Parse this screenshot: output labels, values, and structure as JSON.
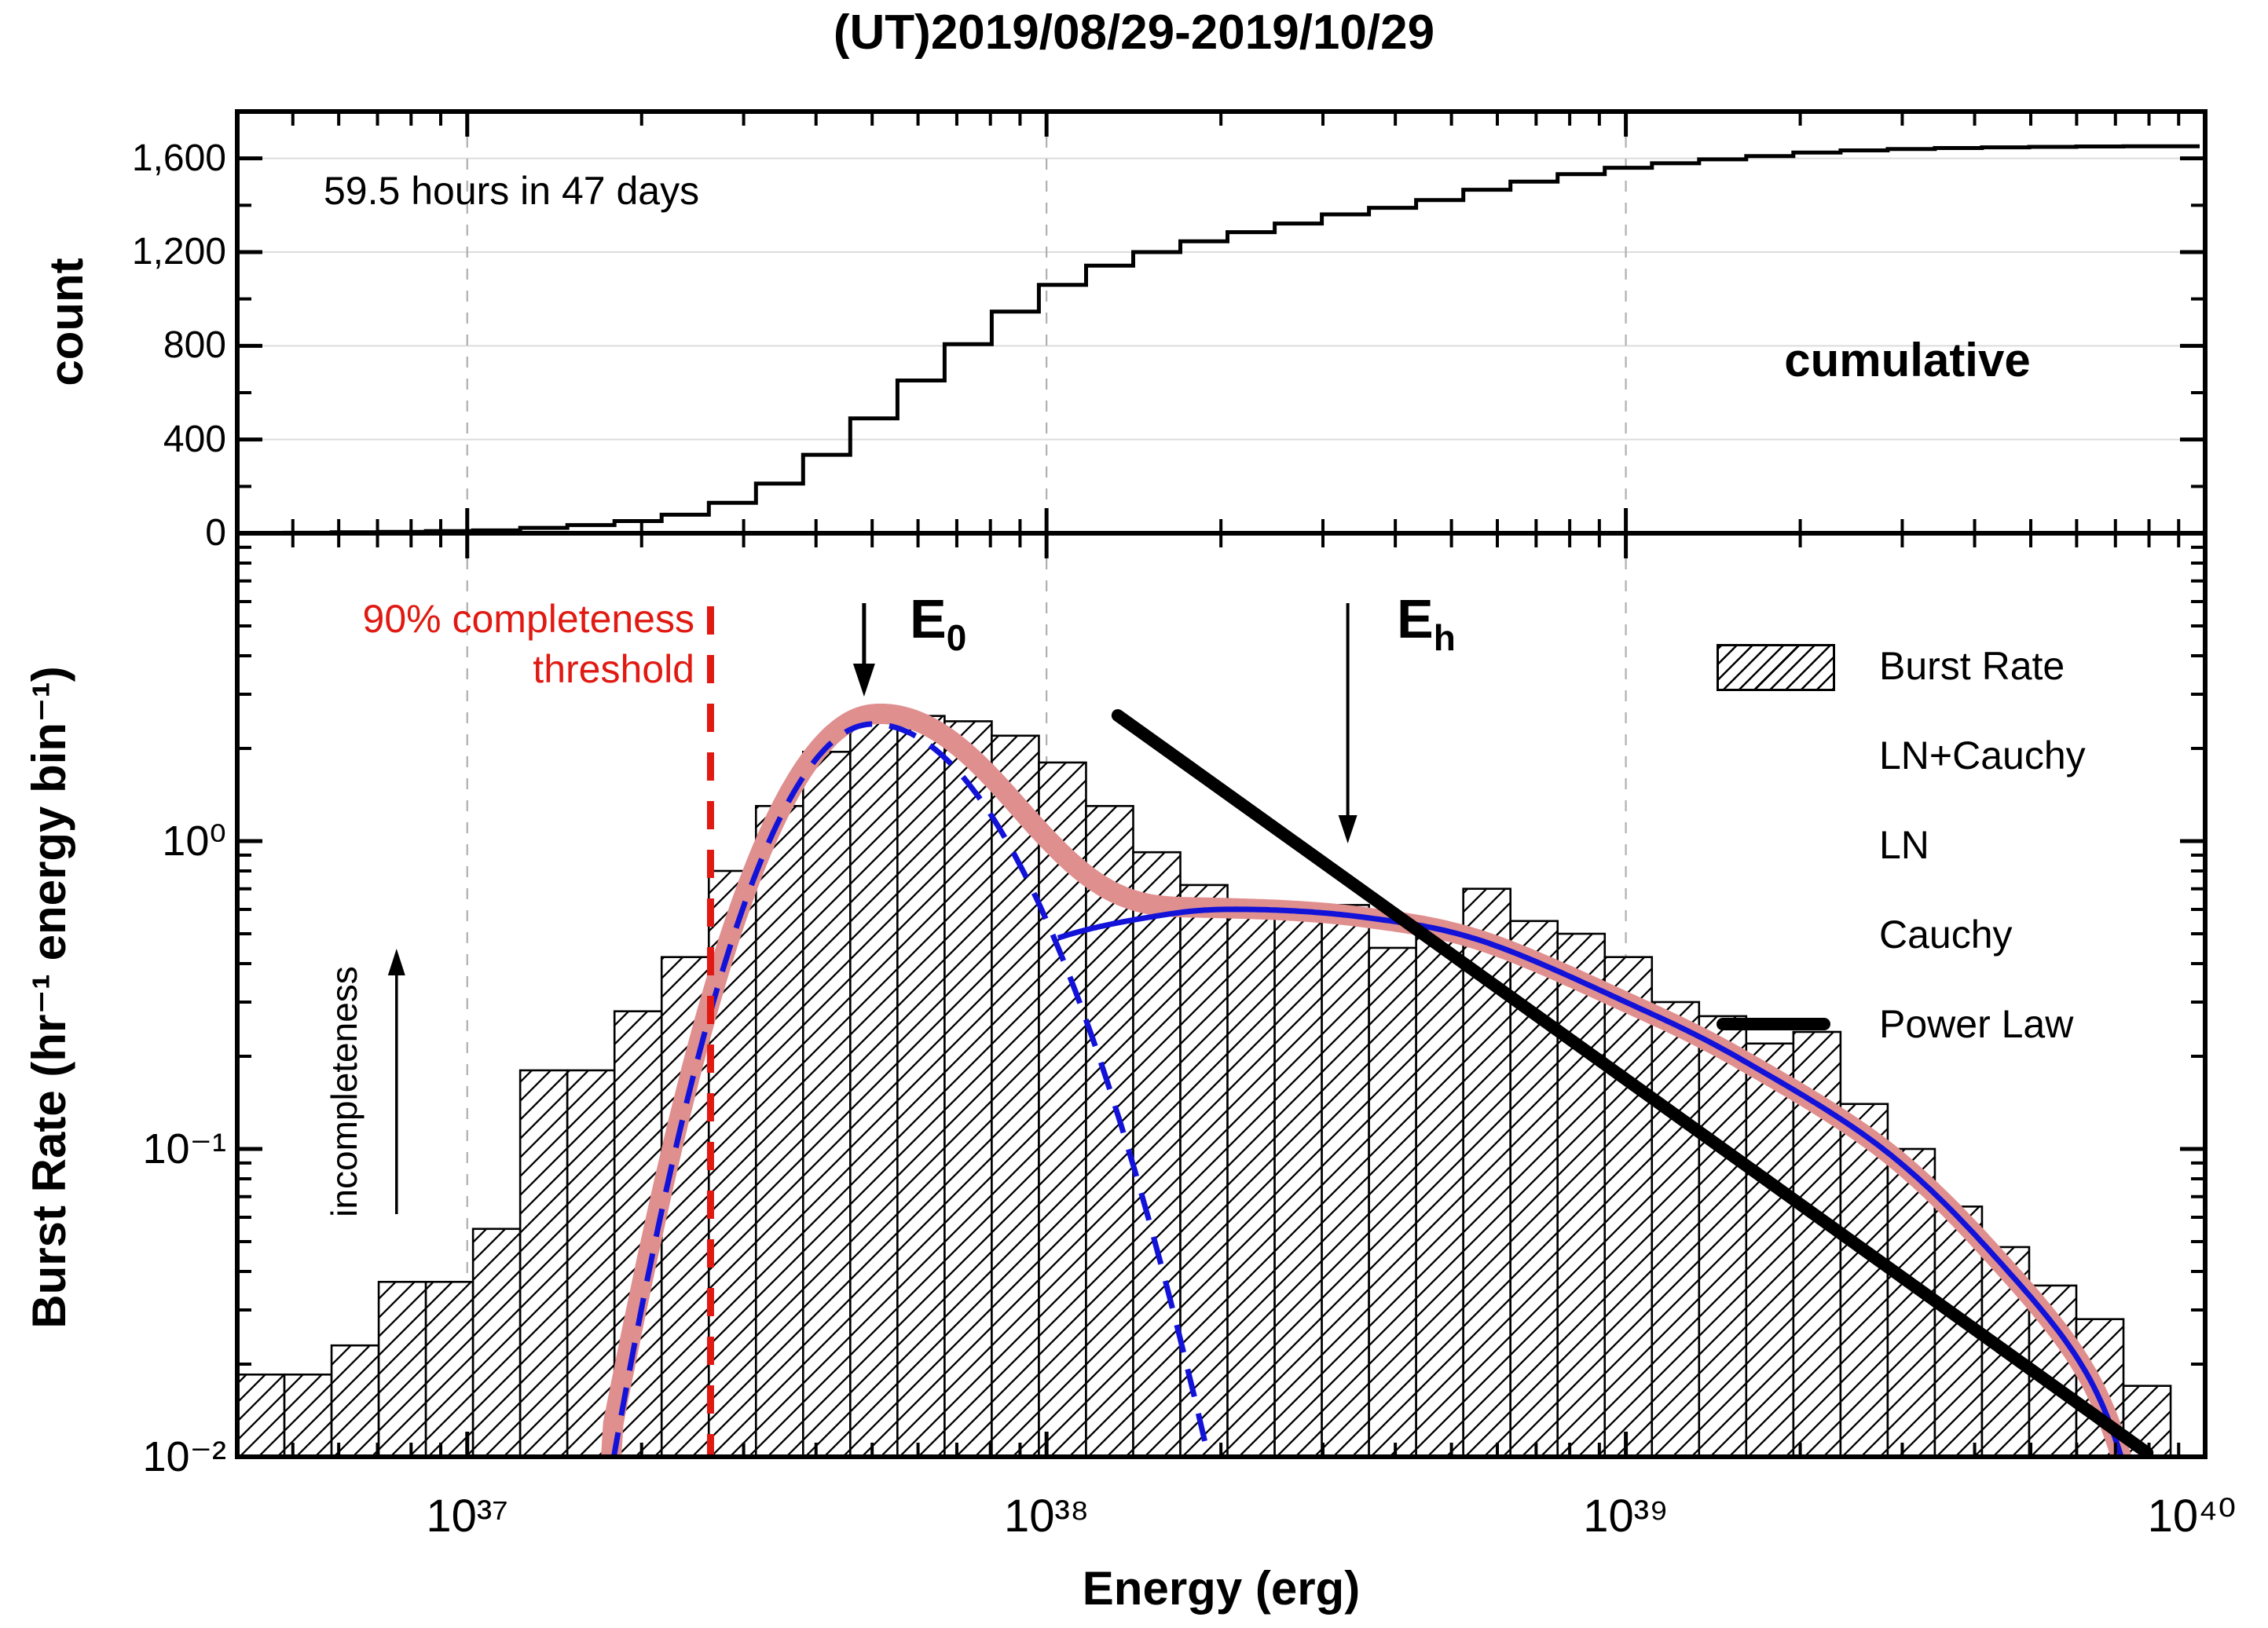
{
  "title": "(UT)2019/08/29-2019/10/29",
  "colors": {
    "pink": "#E08F8F",
    "blue": "#1212D9",
    "red": "#E01A12",
    "black": "#000000",
    "grid_light": "#DCDCDC",
    "grid_dashed": "#AFAFAF"
  },
  "top_panel": {
    "ylabel": "count",
    "annotation": "59.5 hours in 47 days",
    "corner_label": "cumulative",
    "ytick_labels": [
      "0",
      "400",
      "800",
      "1,200",
      "1,600"
    ],
    "ytick_values": [
      0,
      400,
      800,
      1200,
      1600
    ],
    "yminor_values": [
      200,
      600,
      1000,
      1400
    ],
    "ylim": [
      0,
      1800
    ]
  },
  "bottom_panel": {
    "ylabel": "Burst Rate (hr⁻¹ energy bin⁻¹)",
    "xlabel": "Energy (erg)",
    "xtick_labels": [
      "10³⁷",
      "10³⁸",
      "10³⁹",
      "10⁴⁰"
    ],
    "xtick_logE": [
      37,
      38,
      39,
      40
    ],
    "ytick_labels": [
      "10⁰",
      "10⁻¹",
      "10⁻²"
    ],
    "ytick_values": [
      1,
      0.1,
      0.01
    ],
    "annotations": {
      "threshold_line1": "90% completeness",
      "threshold_line2": "threshold",
      "incompleteness": "incompleteness",
      "e0_main": "E",
      "e0_sub": "0",
      "eh_main": "E",
      "eh_sub": "h"
    }
  },
  "legend": {
    "items": [
      {
        "label": "Burst Rate",
        "swatch": "hatch"
      },
      {
        "label": "LN+Cauchy",
        "swatch": "thick-pink-line"
      },
      {
        "label": "LN",
        "swatch": "blue-dashed-line"
      },
      {
        "label": "Cauchy",
        "swatch": "blue-solid-line"
      },
      {
        "label": "Power Law",
        "swatch": "thick-black-line"
      }
    ]
  },
  "chart_data": [
    {
      "type": "line",
      "subtype": "cumulative-step-histogram",
      "title": "cumulative",
      "note": "59.5 hours in 47 days",
      "x_axis": "log10 Energy (erg), shared with bottom panel",
      "ylabel": "count",
      "ylim": [
        0,
        1800
      ],
      "total_bursts": 1652,
      "cumulative_counts": [
        1,
        2,
        4,
        6,
        9,
        12,
        23,
        35,
        52,
        79,
        130,
        212,
        335,
        490,
        652,
        807,
        946,
        1060,
        1142,
        1200,
        1246,
        1285,
        1322,
        1361,
        1389,
        1422,
        1466,
        1501,
        1533,
        1560,
        1579,
        1596,
        1610,
        1625,
        1634,
        1640,
        1644,
        1647,
        1649,
        1651,
        1652
      ]
    },
    {
      "type": "bar",
      "subtype": "log-log histogram with fitted curves",
      "xlabel": "Energy (erg)",
      "ylabel": "Burst Rate (hr⁻¹ energy bin⁻¹)",
      "xlim_logE": [
        36.603,
        40.0
      ],
      "ylim": [
        0.01,
        10
      ],
      "grid": "dashed vertical at decades",
      "legend_position": "upper right",
      "bars": {
        "name": "Burst Rate",
        "logE_start": 36.603,
        "bin_width_dex": 0.0814,
        "rates": [
          0.0185,
          0.0185,
          0.023,
          0.037,
          0.037,
          0.055,
          0.18,
          0.18,
          0.28,
          0.42,
          0.8,
          1.3,
          1.95,
          2.45,
          2.55,
          2.45,
          2.2,
          1.8,
          1.3,
          0.92,
          0.72,
          0.62,
          0.58,
          0.62,
          0.45,
          0.52,
          0.7,
          0.55,
          0.5,
          0.42,
          0.3,
          0.27,
          0.22,
          0.24,
          0.14,
          0.1,
          0.065,
          0.048,
          0.036,
          0.028,
          0.017
        ]
      },
      "series": [
        {
          "name": "LN",
          "model": "asymmetric log-normal",
          "amplitude": 2.4,
          "mu_logE": 37.7,
          "sigma_left_dex": 0.135,
          "sigma_right_dex": 0.175,
          "draw_min_rate": 0.0095
        },
        {
          "name": "Cauchy",
          "points_logE": [
            37.25,
            37.45,
            37.6,
            37.8,
            38.0,
            38.2,
            38.35,
            38.55,
            38.75,
            39.0,
            39.2,
            39.45,
            39.65,
            39.8,
            39.88,
            39.92
          ],
          "points_rate": [
            0.003,
            0.035,
            0.1,
            0.3,
            0.47,
            0.575,
            0.6,
            0.565,
            0.475,
            0.3,
            0.195,
            0.098,
            0.042,
            0.018,
            0.0068,
            0.0025
          ],
          "draw_from_logE": 38.02
        },
        {
          "name": "LN+Cauchy",
          "model": "sum of LN and Cauchy",
          "peak_rate": 2.6,
          "peak_logE": 37.7
        },
        {
          "name": "Power Law",
          "logE_range": [
            38.123,
            39.9
          ],
          "rate_range": [
            2.56,
            0.0103
          ],
          "index": -1.35
        }
      ],
      "annotations": {
        "completeness_threshold_logE": 37.42,
        "E0_arrow_logE": 37.685,
        "Eh_arrow_logE": 38.52,
        "incompleteness_arrow_logE": 36.878
      }
    }
  ]
}
